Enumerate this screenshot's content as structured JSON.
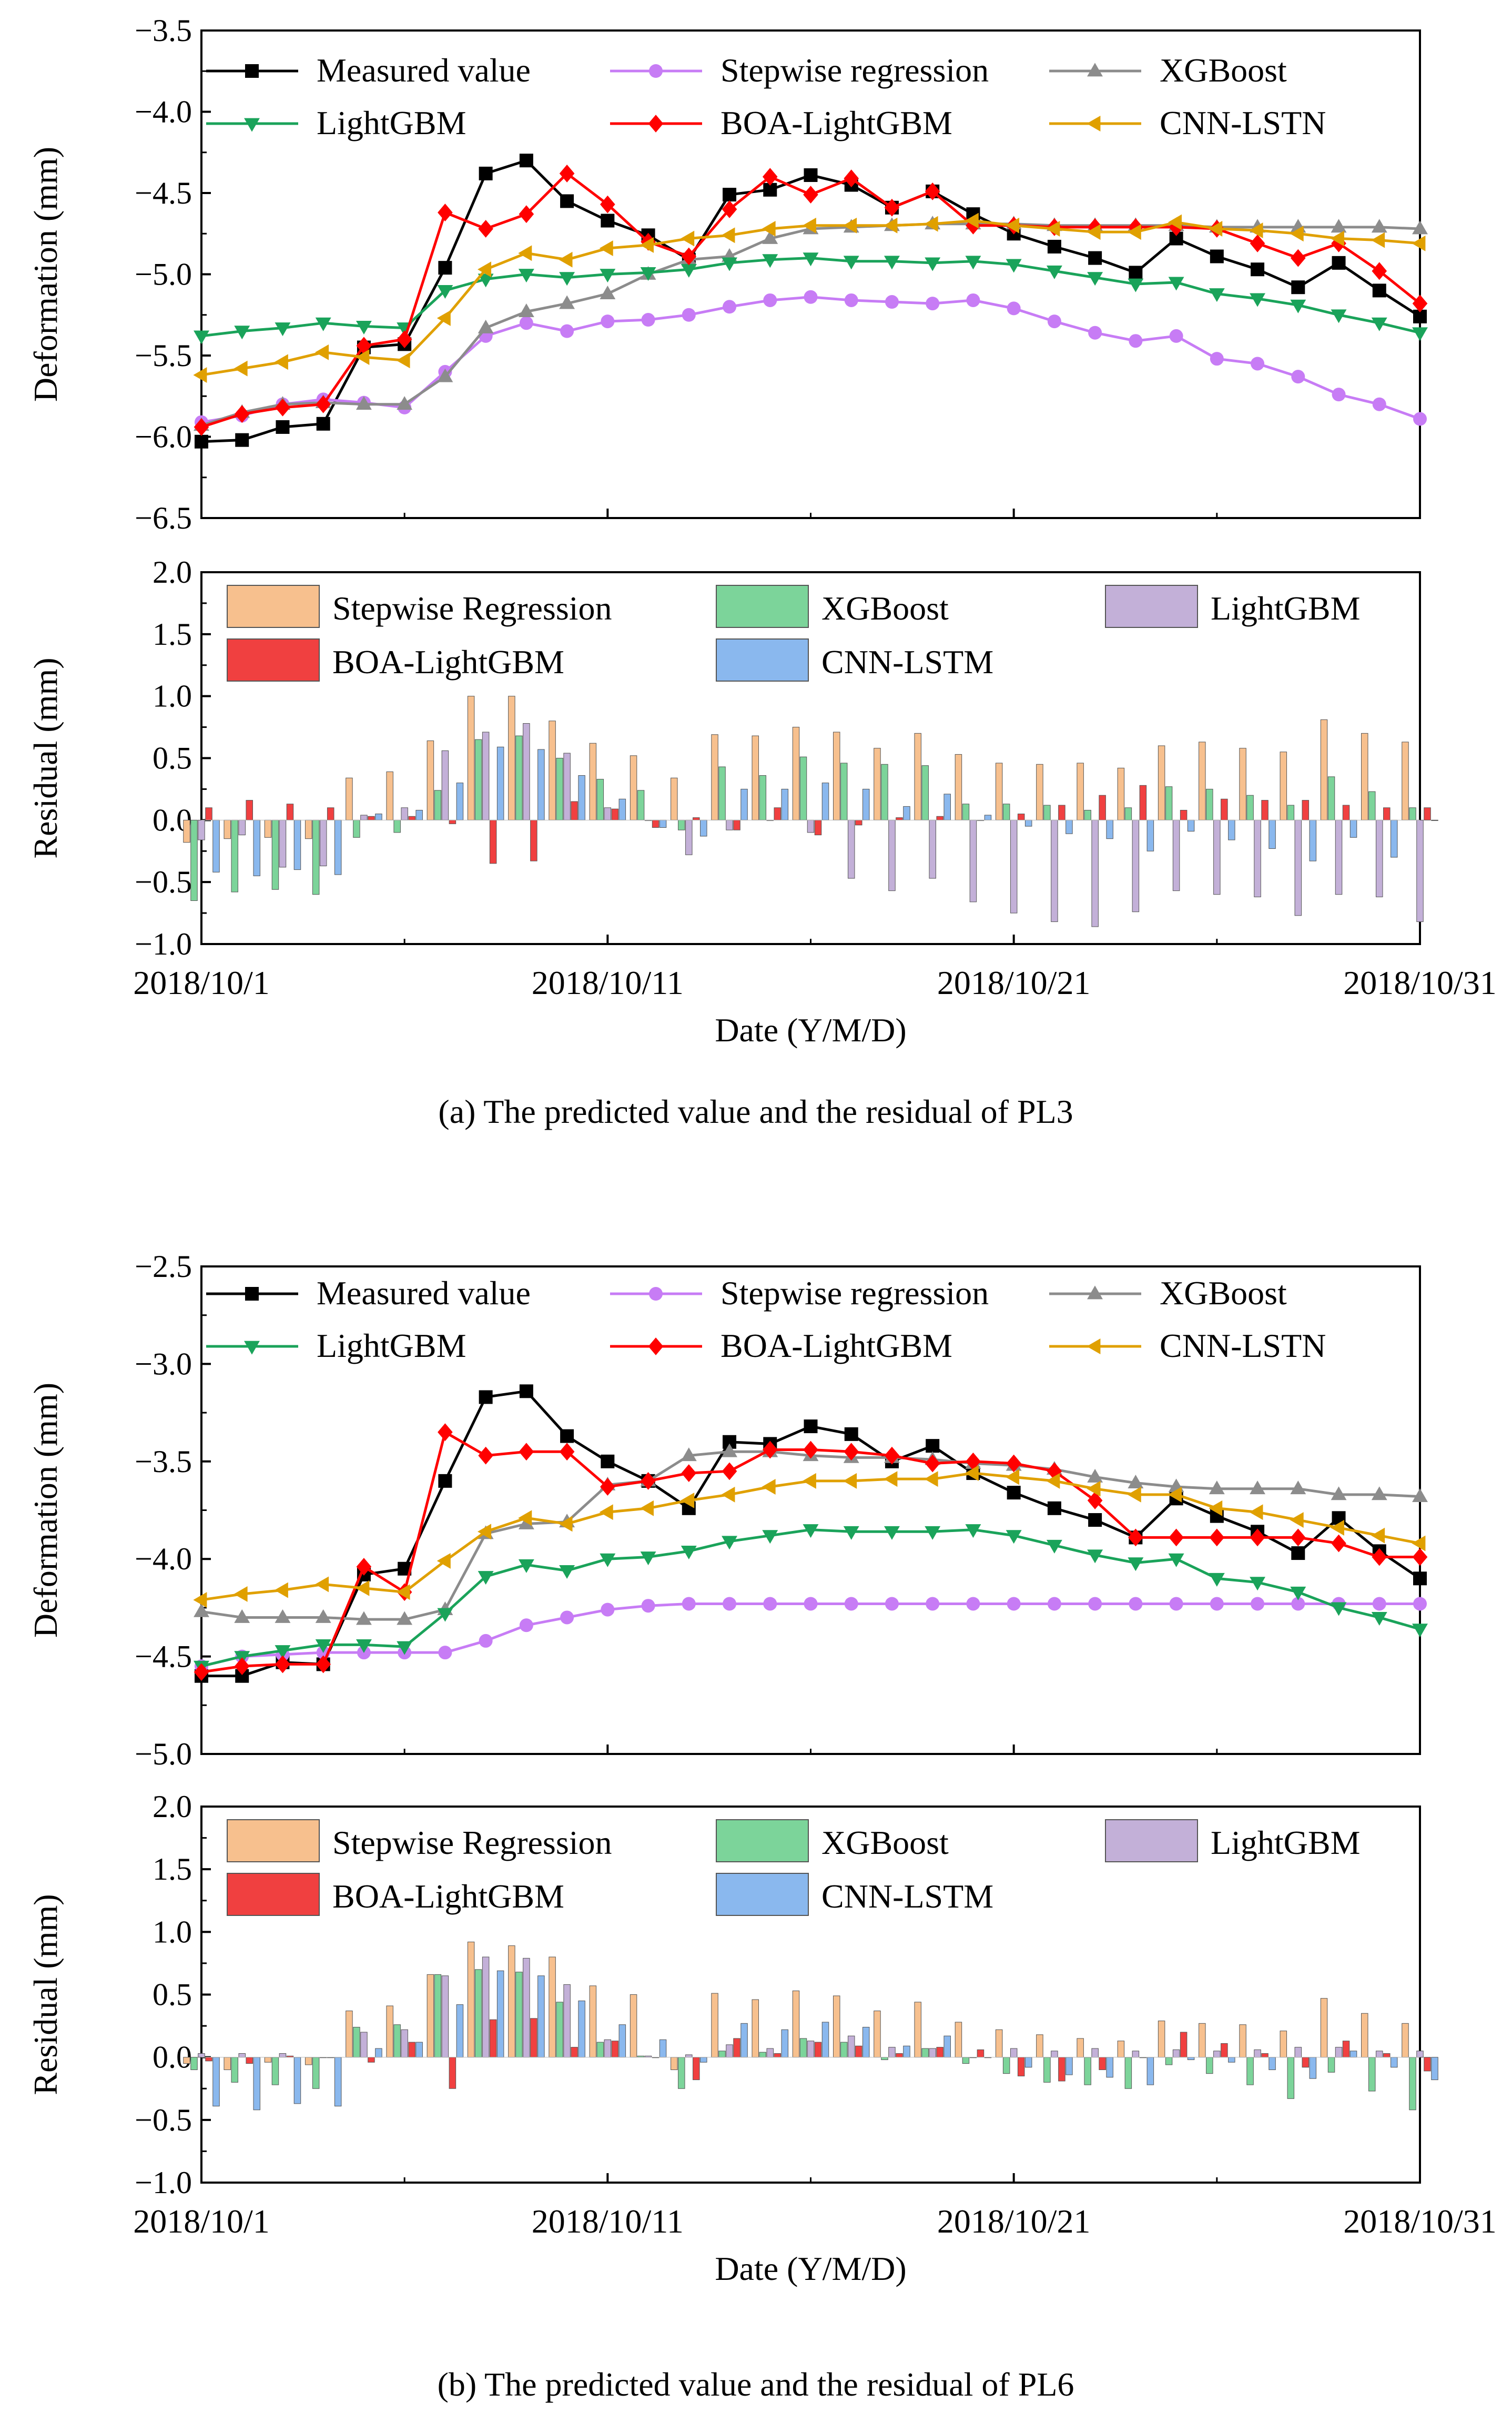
{
  "chart_data": [
    {
      "id": "pl3_deformation",
      "type": "line",
      "ylabel": "Deformation (mm)",
      "ylim": [
        -6.5,
        -3.5
      ],
      "yticks": [
        "-3.5",
        "-4.0",
        "-4.5",
        "-5.0",
        "-5.5",
        "-6.0",
        "-6.5"
      ],
      "x": [
        1,
        2,
        3,
        4,
        5,
        6,
        7,
        8,
        9,
        10,
        11,
        12,
        13,
        14,
        15,
        16,
        17,
        18,
        19,
        20,
        21,
        22,
        23,
        24,
        25,
        26,
        27,
        28,
        29,
        30,
        31
      ],
      "series": [
        {
          "name": "Measured value",
          "key": "measured",
          "color": "#000000",
          "marker": "square",
          "values": [
            -6.03,
            -6.02,
            -5.94,
            -5.92,
            -5.45,
            -5.43,
            -4.96,
            -4.38,
            -4.3,
            -4.55,
            -4.67,
            -4.76,
            -4.91,
            -4.51,
            -4.48,
            -4.39,
            -4.45,
            -4.59,
            -4.49,
            -4.63,
            -4.75,
            -4.83,
            -4.9,
            -4.99,
            -4.78,
            -4.89,
            -4.97,
            -5.08,
            -4.93,
            -5.1,
            -5.26
          ]
        },
        {
          "name": "Stepwise regression",
          "key": "stepwise",
          "color": "#c77cf5",
          "marker": "circle",
          "values": [
            -5.91,
            -5.87,
            -5.8,
            -5.77,
            -5.79,
            -5.82,
            -5.6,
            -5.38,
            -5.3,
            -5.35,
            -5.29,
            -5.28,
            -5.25,
            -5.2,
            -5.16,
            -5.14,
            -5.16,
            -5.17,
            -5.18,
            -5.16,
            -5.21,
            -5.29,
            -5.36,
            -5.41,
            -5.38,
            -5.52,
            -5.55,
            -5.63,
            -5.74,
            -5.8,
            -5.89
          ]
        },
        {
          "name": "XGBoost",
          "key": "xgboost",
          "color": "#8c8c8c",
          "marker": "triangle-up",
          "values": [
            -5.93,
            -5.85,
            -5.8,
            -5.79,
            -5.8,
            -5.8,
            -5.63,
            -5.33,
            -5.23,
            -5.18,
            -5.12,
            -5.0,
            -4.91,
            -4.89,
            -4.78,
            -4.72,
            -4.71,
            -4.7,
            -4.69,
            -4.69,
            -4.69,
            -4.7,
            -4.7,
            -4.7,
            -4.7,
            -4.71,
            -4.71,
            -4.71,
            -4.71,
            -4.71,
            -4.72
          ]
        },
        {
          "name": "LightGBM",
          "key": "lightgbm",
          "color": "#1aa35a",
          "marker": "triangle-down",
          "values": [
            -5.38,
            -5.35,
            -5.33,
            -5.3,
            -5.32,
            -5.33,
            -5.1,
            -5.03,
            -5.0,
            -5.02,
            -5.0,
            -4.99,
            -4.97,
            -4.93,
            -4.91,
            -4.9,
            -4.92,
            -4.92,
            -4.93,
            -4.92,
            -4.94,
            -4.98,
            -5.02,
            -5.06,
            -5.05,
            -5.12,
            -5.15,
            -5.19,
            -5.25,
            -5.3,
            -5.36
          ]
        },
        {
          "name": "BOA-LightGBM",
          "key": "boa",
          "color": "#ff0000",
          "marker": "diamond",
          "values": [
            -5.94,
            -5.86,
            -5.82,
            -5.8,
            -5.44,
            -5.4,
            -4.62,
            -4.72,
            -4.63,
            -4.38,
            -4.57,
            -4.8,
            -4.89,
            -4.6,
            -4.4,
            -4.51,
            -4.41,
            -4.59,
            -4.49,
            -4.7,
            -4.7,
            -4.71,
            -4.71,
            -4.71,
            -4.71,
            -4.72,
            -4.81,
            -4.9,
            -4.81,
            -4.98,
            -5.18
          ]
        },
        {
          "name": "CNN-LSTN",
          "key": "cnn",
          "color": "#e0a000",
          "marker": "triangle-left",
          "values": [
            -5.62,
            -5.58,
            -5.54,
            -5.48,
            -5.51,
            -5.53,
            -5.27,
            -4.97,
            -4.87,
            -4.91,
            -4.84,
            -4.82,
            -4.78,
            -4.76,
            -4.72,
            -4.7,
            -4.7,
            -4.7,
            -4.69,
            -4.67,
            -4.7,
            -4.72,
            -4.74,
            -4.74,
            -4.68,
            -4.72,
            -4.73,
            -4.75,
            -4.78,
            -4.79,
            -4.81
          ]
        }
      ]
    },
    {
      "id": "pl3_residual",
      "type": "bar",
      "ylabel": "Residual (mm)",
      "xlabel": "Date (Y/M/D)",
      "ylim": [
        -1.0,
        2.0
      ],
      "yticks": [
        "2.0",
        "1.5",
        "1.0",
        "0.5",
        "0.0",
        "-0.5",
        "-1.0"
      ],
      "categories": [
        1,
        2,
        3,
        4,
        5,
        6,
        7,
        8,
        9,
        10,
        11,
        12,
        13,
        14,
        15,
        16,
        17,
        18,
        19,
        20,
        21,
        22,
        23,
        24,
        25,
        26,
        27,
        28,
        29,
        30,
        31
      ],
      "xtick_labels": [
        "2018/10/1",
        "2018/10/11",
        "2018/10/21",
        "2018/10/31"
      ],
      "caption": "(a) The predicted value and the residual of PL3",
      "series": [
        {
          "name": "Stepwise Regression",
          "key": "stepwise",
          "color": "#f7c08e",
          "values": [
            -0.18,
            -0.15,
            -0.14,
            -0.15,
            0.34,
            0.39,
            0.64,
            1.0,
            1.0,
            0.8,
            0.62,
            0.52,
            0.34,
            0.69,
            0.68,
            0.75,
            0.71,
            0.58,
            0.7,
            0.53,
            0.46,
            0.45,
            0.46,
            0.42,
            0.6,
            0.63,
            0.58,
            0.55,
            0.81,
            0.7,
            0.63
          ]
        },
        {
          "name": "XGBoost",
          "key": "xgboost",
          "color": "#7cd49a",
          "values": [
            -0.65,
            -0.58,
            -0.56,
            -0.6,
            -0.14,
            -0.1,
            0.24,
            0.65,
            0.68,
            0.5,
            0.33,
            0.24,
            -0.08,
            0.43,
            0.36,
            0.51,
            0.46,
            0.45,
            0.44,
            0.13,
            0.13,
            0.12,
            0.08,
            0.1,
            0.27,
            0.25,
            0.2,
            0.12,
            0.35,
            0.23,
            0.1
          ]
        },
        {
          "name": "LightGBM",
          "key": "lightgbm",
          "color": "#c3b0d8",
          "values": [
            -0.16,
            -0.12,
            -0.38,
            -0.37,
            0.04,
            0.1,
            0.56,
            0.71,
            0.78,
            0.54,
            0.1,
            0.0,
            -0.28,
            -0.08,
            0.0,
            -0.1,
            -0.47,
            -0.57,
            -0.47,
            -0.66,
            -0.75,
            -0.82,
            -0.86,
            -0.74,
            -0.57,
            -0.6,
            -0.62,
            -0.77,
            -0.6,
            -0.62,
            -0.82
          ]
        },
        {
          "name": "BOA-LightGBM",
          "key": "boa",
          "color": "#f04040",
          "values": [
            0.1,
            0.16,
            0.13,
            0.1,
            0.03,
            0.03,
            -0.03,
            -0.35,
            -0.33,
            0.15,
            0.09,
            -0.06,
            0.02,
            -0.08,
            0.1,
            -0.12,
            -0.04,
            0.02,
            0.03,
            0.0,
            0.05,
            0.12,
            0.2,
            0.28,
            0.08,
            0.17,
            0.16,
            0.16,
            0.12,
            0.1,
            0.1
          ]
        },
        {
          "name": "CNN-LSTM",
          "key": "cnn",
          "color": "#8ab8ee",
          "values": [
            -0.42,
            -0.45,
            -0.4,
            -0.44,
            0.05,
            0.08,
            0.3,
            0.59,
            0.57,
            0.36,
            0.17,
            -0.06,
            -0.13,
            0.25,
            0.25,
            0.3,
            0.25,
            0.11,
            0.21,
            0.04,
            -0.05,
            -0.11,
            -0.15,
            -0.25,
            -0.09,
            -0.16,
            -0.23,
            -0.33,
            -0.14,
            -0.3,
            0.0
          ]
        }
      ]
    },
    {
      "id": "pl6_deformation",
      "type": "line",
      "ylabel": "Deformation (mm)",
      "ylim": [
        -5.0,
        -2.5
      ],
      "yticks": [
        "-2.5",
        "-3.0",
        "-3.5",
        "-4.0",
        "-4.5",
        "-5.0"
      ],
      "x": [
        1,
        2,
        3,
        4,
        5,
        6,
        7,
        8,
        9,
        10,
        11,
        12,
        13,
        14,
        15,
        16,
        17,
        18,
        19,
        20,
        21,
        22,
        23,
        24,
        25,
        26,
        27,
        28,
        29,
        30,
        31
      ],
      "series": [
        {
          "name": "Measured value",
          "key": "measured",
          "color": "#000000",
          "marker": "square",
          "values": [
            -4.6,
            -4.6,
            -4.53,
            -4.54,
            -4.08,
            -4.05,
            -3.6,
            -3.17,
            -3.14,
            -3.37,
            -3.5,
            -3.6,
            -3.74,
            -3.4,
            -3.41,
            -3.32,
            -3.36,
            -3.5,
            -3.42,
            -3.56,
            -3.66,
            -3.74,
            -3.8,
            -3.89,
            -3.69,
            -3.78,
            -3.86,
            -3.97,
            -3.79,
            -3.96,
            -4.1
          ]
        },
        {
          "name": "Stepwise regression",
          "key": "stepwise",
          "color": "#c77cf5",
          "marker": "circle",
          "values": [
            -4.55,
            -4.5,
            -4.49,
            -4.48,
            -4.48,
            -4.48,
            -4.48,
            -4.42,
            -4.34,
            -4.3,
            -4.26,
            -4.24,
            -4.23,
            -4.23,
            -4.23,
            -4.23,
            -4.23,
            -4.23,
            -4.23,
            -4.23,
            -4.23,
            -4.23,
            -4.23,
            -4.23,
            -4.23,
            -4.23,
            -4.23,
            -4.23,
            -4.23,
            -4.23,
            -4.23
          ]
        },
        {
          "name": "XGBoost",
          "key": "xgboost",
          "color": "#8c8c8c",
          "marker": "triangle-up",
          "values": [
            -4.27,
            -4.3,
            -4.3,
            -4.3,
            -4.31,
            -4.31,
            -4.26,
            -3.87,
            -3.82,
            -3.81,
            -3.62,
            -3.6,
            -3.47,
            -3.45,
            -3.45,
            -3.47,
            -3.48,
            -3.48,
            -3.49,
            -3.51,
            -3.52,
            -3.54,
            -3.58,
            -3.61,
            -3.63,
            -3.64,
            -3.64,
            -3.64,
            -3.67,
            -3.67,
            -3.68
          ]
        },
        {
          "name": "LightGBM",
          "key": "lightgbm",
          "color": "#1aa35a",
          "marker": "triangle-down",
          "values": [
            -4.55,
            -4.5,
            -4.47,
            -4.44,
            -4.44,
            -4.45,
            -4.28,
            -4.09,
            -4.03,
            -4.06,
            -4.0,
            -3.99,
            -3.96,
            -3.91,
            -3.88,
            -3.85,
            -3.86,
            -3.86,
            -3.86,
            -3.85,
            -3.88,
            -3.93,
            -3.98,
            -4.02,
            -4.0,
            -4.1,
            -4.12,
            -4.17,
            -4.25,
            -4.3,
            -4.36
          ]
        },
        {
          "name": "BOA-LightGBM",
          "key": "boa",
          "color": "#ff0000",
          "marker": "diamond",
          "values": [
            -4.58,
            -4.55,
            -4.54,
            -4.54,
            -4.04,
            -4.17,
            -3.35,
            -3.47,
            -3.45,
            -3.45,
            -3.63,
            -3.6,
            -3.56,
            -3.55,
            -3.44,
            -3.44,
            -3.45,
            -3.47,
            -3.51,
            -3.5,
            -3.51,
            -3.55,
            -3.7,
            -3.89,
            -3.89,
            -3.89,
            -3.89,
            -3.89,
            -3.92,
            -3.99,
            -3.99
          ]
        },
        {
          "name": "CNN-LSTN",
          "key": "cnn",
          "color": "#e0a000",
          "marker": "triangle-left",
          "values": [
            -4.21,
            -4.18,
            -4.16,
            -4.13,
            -4.15,
            -4.17,
            -4.01,
            -3.86,
            -3.79,
            -3.82,
            -3.76,
            -3.74,
            -3.7,
            -3.67,
            -3.63,
            -3.6,
            -3.6,
            -3.59,
            -3.59,
            -3.56,
            -3.58,
            -3.6,
            -3.64,
            -3.67,
            -3.67,
            -3.74,
            -3.76,
            -3.8,
            -3.84,
            -3.88,
            -3.92
          ]
        }
      ]
    },
    {
      "id": "pl6_residual",
      "type": "bar",
      "ylabel": "Residual (mm)",
      "xlabel": "Date (Y/M/D)",
      "ylim": [
        -1.0,
        2.0
      ],
      "yticks": [
        "2.0",
        "1.5",
        "1.0",
        "0.5",
        "0.0",
        "-0.5",
        "-1.0"
      ],
      "categories": [
        1,
        2,
        3,
        4,
        5,
        6,
        7,
        8,
        9,
        10,
        11,
        12,
        13,
        14,
        15,
        16,
        17,
        18,
        19,
        20,
        21,
        22,
        23,
        24,
        25,
        26,
        27,
        28,
        29,
        30,
        31
      ],
      "xtick_labels": [
        "2018/10/1",
        "2018/10/11",
        "2018/10/21",
        "2018/10/31"
      ],
      "caption": "(b) The predicted value and the residual of PL6",
      "series": [
        {
          "name": "Stepwise Regression",
          "key": "stepwise",
          "color": "#f7c08e",
          "values": [
            -0.05,
            -0.1,
            -0.04,
            -0.06,
            0.37,
            0.41,
            0.66,
            0.92,
            0.89,
            0.8,
            0.57,
            0.5,
            -0.1,
            0.51,
            0.46,
            0.53,
            0.49,
            0.37,
            0.44,
            0.28,
            0.22,
            0.18,
            0.15,
            0.13,
            0.29,
            0.27,
            0.26,
            0.21,
            0.47,
            0.35,
            0.27
          ]
        },
        {
          "name": "XGBoost",
          "key": "xgboost",
          "color": "#7cd49a",
          "values": [
            -0.1,
            -0.2,
            -0.22,
            -0.25,
            0.24,
            0.26,
            0.66,
            0.7,
            0.68,
            0.44,
            0.12,
            0.01,
            -0.25,
            0.05,
            0.04,
            0.15,
            0.12,
            -0.02,
            0.07,
            -0.05,
            -0.13,
            -0.2,
            -0.22,
            -0.25,
            -0.06,
            -0.13,
            -0.22,
            -0.33,
            -0.12,
            -0.27,
            -0.42
          ]
        },
        {
          "name": "LightGBM",
          "key": "lightgbm",
          "color": "#c3b0d8",
          "values": [
            0.03,
            0.03,
            0.03,
            0.0,
            0.2,
            0.22,
            0.65,
            0.8,
            0.79,
            0.58,
            0.14,
            0.01,
            0.02,
            0.1,
            0.07,
            0.13,
            0.17,
            0.08,
            0.07,
            0.0,
            0.07,
            0.05,
            0.07,
            0.05,
            0.06,
            0.05,
            0.06,
            0.08,
            0.08,
            0.05,
            0.05
          ]
        },
        {
          "name": "BOA-LightGBM",
          "key": "boa",
          "color": "#f04040",
          "values": [
            -0.03,
            -0.05,
            0.01,
            0.0,
            -0.04,
            0.12,
            -0.25,
            0.3,
            0.31,
            0.08,
            0.13,
            0.0,
            -0.18,
            0.15,
            0.03,
            0.12,
            0.09,
            0.03,
            0.08,
            0.06,
            -0.15,
            -0.19,
            -0.1,
            0.0,
            0.2,
            0.11,
            0.03,
            -0.08,
            0.13,
            0.03,
            -0.11
          ]
        },
        {
          "name": "CNN-LSTM",
          "key": "cnn",
          "color": "#8ab8ee",
          "values": [
            -0.39,
            -0.42,
            -0.37,
            -0.39,
            0.07,
            0.12,
            0.42,
            0.69,
            0.65,
            0.45,
            0.26,
            0.14,
            -0.04,
            0.27,
            0.22,
            0.28,
            0.24,
            0.09,
            0.17,
            0.0,
            -0.08,
            -0.14,
            -0.16,
            -0.22,
            -0.02,
            -0.04,
            -0.1,
            -0.17,
            0.05,
            -0.08,
            -0.18
          ]
        }
      ]
    }
  ]
}
